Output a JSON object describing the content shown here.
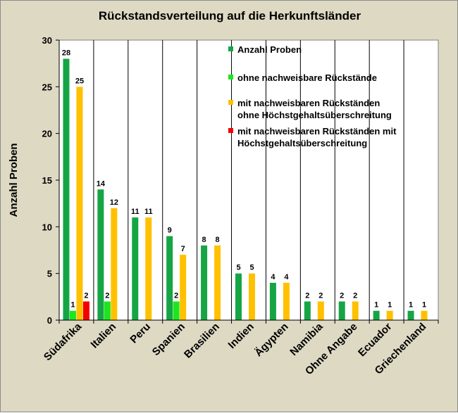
{
  "chart_data": {
    "type": "bar",
    "title": "Rückstandsverteilung auf die Herkunftsländer",
    "ylabel": "Anzahl Proben",
    "xlabel": "",
    "ylim": [
      0,
      30
    ],
    "yticks": [
      0,
      5,
      10,
      15,
      20,
      25,
      30
    ],
    "grid": false,
    "legend_position": "top-right",
    "categories": [
      "Südafrika",
      "Italien",
      "Peru",
      "Spanien",
      "Brasilien",
      "Indien",
      "Ägypten",
      "Namibia",
      "Ohne Angabe",
      "Ecuador",
      "Griechenland"
    ],
    "series": [
      {
        "name": "Anzahl Proben",
        "legend_lines": [
          "Anzahl Proben"
        ],
        "color": "#16a545",
        "values": [
          28,
          14,
          11,
          9,
          8,
          5,
          4,
          2,
          2,
          1,
          1
        ]
      },
      {
        "name": "ohne nachweisbare Rückstände",
        "legend_lines": [
          "ohne nachweisbare Rückstände"
        ],
        "color": "#1ee61e",
        "values": [
          1,
          2,
          null,
          2,
          null,
          null,
          null,
          null,
          null,
          null,
          null
        ]
      },
      {
        "name": "mit nachweisbaren Rückständen ohne Höchstgehaltsüberschreitung",
        "legend_lines": [
          "mit nachweisbaren Rückständen",
          "ohne Höchstgehaltsüberschreitung"
        ],
        "color": "#ffc000",
        "values": [
          25,
          12,
          11,
          7,
          8,
          5,
          4,
          2,
          2,
          1,
          1
        ]
      },
      {
        "name": "mit nachweisbaren Rückständen mit Höchstgehaltsüberschreitung",
        "legend_lines": [
          "mit nachweisbaren Rückständen mit",
          "Höchstgehaltsüberschreitung"
        ],
        "color": "#f50000",
        "values": [
          2,
          null,
          null,
          null,
          null,
          null,
          null,
          null,
          null,
          null,
          null
        ]
      }
    ],
    "data_labels": [
      [
        "28",
        "14",
        "11",
        "9",
        "8",
        "5",
        "4",
        "2",
        "2",
        "1",
        "1"
      ],
      [
        "1",
        "2",
        null,
        "2",
        null,
        null,
        null,
        null,
        null,
        null,
        null
      ],
      [
        "25",
        "12",
        "11",
        "7",
        "8",
        "5",
        "4",
        "2",
        "2",
        "1",
        "1"
      ],
      [
        "2",
        null,
        null,
        null,
        null,
        null,
        null,
        null,
        null,
        null,
        null
      ]
    ]
  }
}
